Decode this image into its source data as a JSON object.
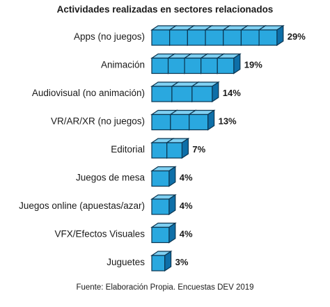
{
  "chart_data": {
    "type": "bar",
    "orientation": "horizontal",
    "title": "Actividades realizadas en sectores relacionados",
    "source": "Fuente: Elaboración Propia. Encuestas DEV 2019",
    "categories": [
      "Apps (no juegos)",
      "Animación",
      "Audiovisual (no animación)",
      "VR/AR/XR (no juegos)",
      "Editorial",
      "Juegos de mesa",
      "Juegos online (apuestas/azar)",
      "VFX/Efectos Visuales",
      "Juguetes"
    ],
    "values": [
      29,
      19,
      14,
      13,
      7,
      4,
      4,
      4,
      3
    ],
    "value_labels": [
      "29%",
      "19%",
      "14%",
      "13%",
      "7%",
      "4%",
      "4%",
      "4%",
      "3%"
    ],
    "unit": "%",
    "grid": false,
    "legend": "none",
    "colors": {
      "cube_front": "#2aa8df",
      "cube_side": "#0e6fa8",
      "cube_top": "#7fd0f2",
      "cube_edge": "#0b3550",
      "text": "#1a1a1a"
    }
  }
}
